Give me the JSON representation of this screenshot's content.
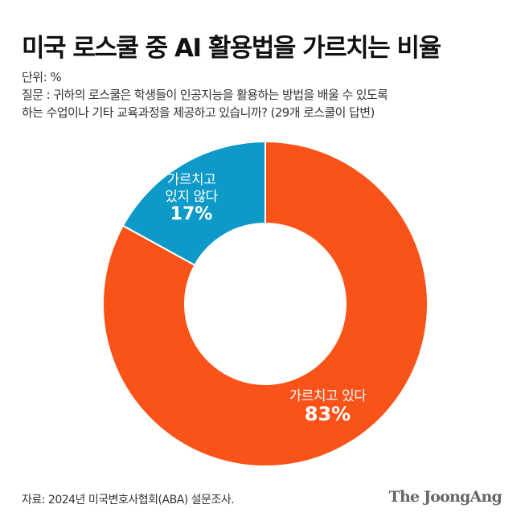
{
  "header": {
    "title": "미국 로스쿨 중 AI 활용법을 가르치는 비율",
    "unit": "단위: %",
    "question_line1": "질문 : 귀하의 로스쿨은 학생들이 인공지능을 활용하는 방법을 배울 수 있도록",
    "question_line2": "하는 수업이나 기타 교육과정을 제공하고 있습니까? (29개 로스쿨이 답변)"
  },
  "segments": [
    {
      "label_line1": "가르치고 있다",
      "label_line2": "",
      "value_text": "83%",
      "color": "#FA5319"
    },
    {
      "label_line1": "가르치고",
      "label_line2": "있지 않다",
      "value_text": "17%",
      "color": "#0E9AC9"
    }
  ],
  "footer": {
    "source": "자료: 2024년 미국변호사협회(ABA) 설문조사.",
    "brand": "The JoongAng"
  },
  "chart_data": {
    "type": "pie",
    "title": "미국 로스쿨 중 AI 활용법을 가르치는 비율",
    "subtitle": "단위: %",
    "categories": [
      "가르치고 있다",
      "가르치고 있지 않다"
    ],
    "values": [
      83,
      17
    ],
    "colors": [
      "#FA5319",
      "#0E9AC9"
    ],
    "donut": true,
    "start_angle_deg": 0,
    "direction": "clockwise",
    "annotations": [
      "질문 : 귀하의 로스쿨은 학생들이 인공지능을 활용하는 방법을 배울 수 있도록 하는 수업이나 기타 교육과정을 제공하고 있습니까? (29개 로스쿨이 답변)"
    ],
    "source": "자료: 2024년 미국변호사협회(ABA) 설문조사."
  }
}
